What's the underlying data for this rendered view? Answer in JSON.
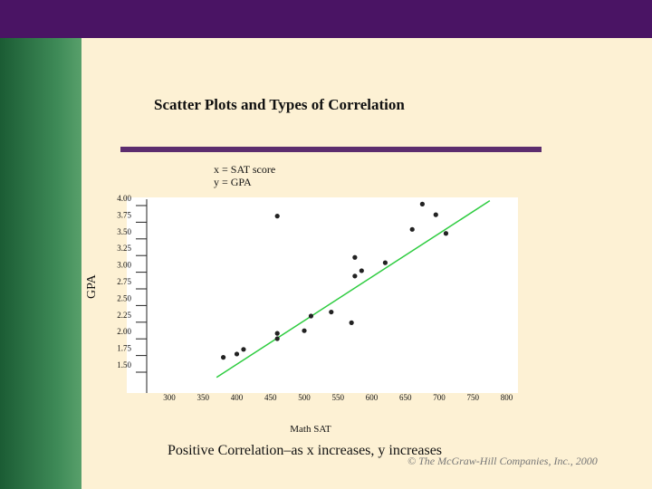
{
  "slide": {
    "title": "Scatter Plots and Types of Correlation",
    "x_definition": "x = SAT score",
    "y_definition": "y = GPA",
    "caption": "Positive Correlation–as x increases, y increases",
    "copyright": "© The McGraw-Hill Companies, Inc.,  2000"
  },
  "colors": {
    "top_bar": "#4a1464",
    "side_bar": "#2e7547",
    "background": "#fdf1d4",
    "trend_line": "#2ecc40",
    "points": "#222222"
  },
  "chart_data": {
    "type": "scatter",
    "title": "",
    "xlabel": "Math SAT",
    "ylabel": "GPA",
    "xlim": [
      250,
      810
    ],
    "ylim": [
      1.25,
      4.0
    ],
    "x_ticks": [
      300,
      350,
      400,
      450,
      500,
      550,
      600,
      650,
      700,
      750,
      800
    ],
    "y_ticks": [
      "4.00",
      "3.75",
      "3.50",
      "3.25",
      "3.00",
      "2.75",
      "2.50",
      "2.25",
      "2.00",
      "1.75",
      "1.50"
    ],
    "points": [
      {
        "x": 380,
        "y": 1.6
      },
      {
        "x": 400,
        "y": 1.65
      },
      {
        "x": 410,
        "y": 1.72
      },
      {
        "x": 460,
        "y": 3.72
      },
      {
        "x": 460,
        "y": 1.96
      },
      {
        "x": 460,
        "y": 1.88
      },
      {
        "x": 500,
        "y": 2.0
      },
      {
        "x": 510,
        "y": 2.22
      },
      {
        "x": 540,
        "y": 2.28
      },
      {
        "x": 570,
        "y": 2.12
      },
      {
        "x": 575,
        "y": 3.1
      },
      {
        "x": 575,
        "y": 2.82
      },
      {
        "x": 585,
        "y": 2.9
      },
      {
        "x": 620,
        "y": 3.02
      },
      {
        "x": 660,
        "y": 3.52
      },
      {
        "x": 675,
        "y": 3.9
      },
      {
        "x": 695,
        "y": 3.74
      },
      {
        "x": 710,
        "y": 3.46
      }
    ],
    "trend_line": {
      "x": [
        370,
        775
      ],
      "y": [
        1.3,
        3.95
      ]
    },
    "grid": false,
    "legend": "none"
  }
}
